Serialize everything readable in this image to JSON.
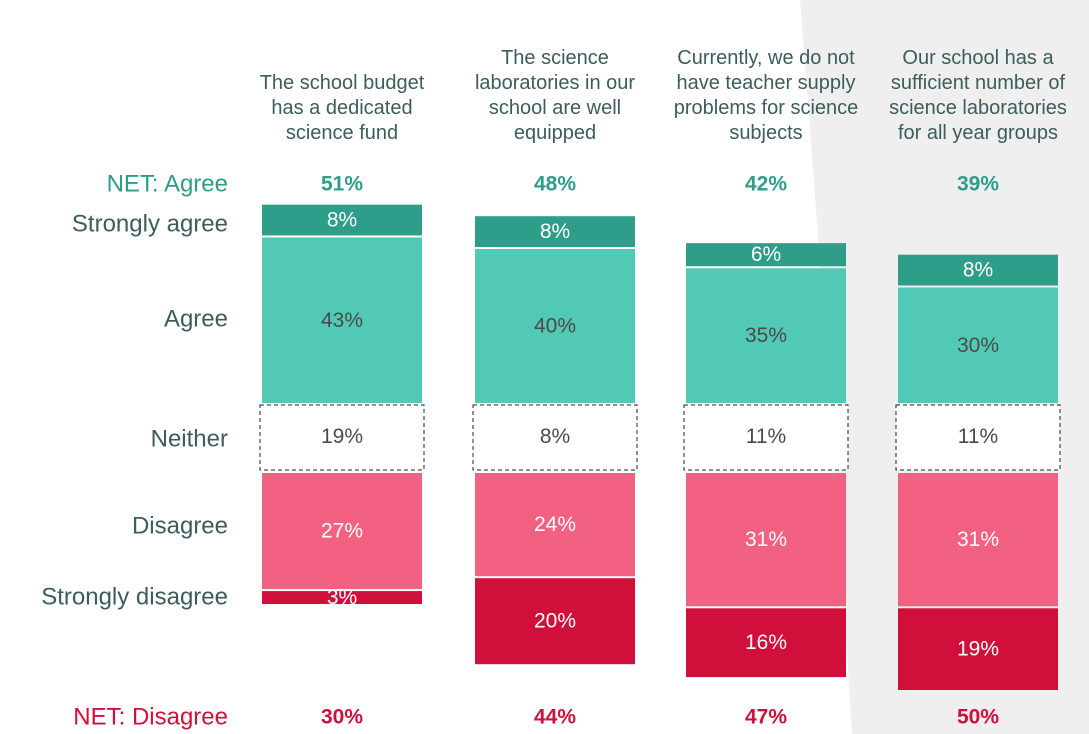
{
  "chart_data": {
    "type": "bar",
    "categories": [
      "The school budget has a dedicated science fund",
      "The science laboratories in our school are well equipped",
      "Currently, we do not have teacher supply problems for science subjects",
      "Our school has a sufficient number of science laboratories for all year groups"
    ],
    "series": [
      {
        "name": "Strongly agree",
        "color": "#2e9e8a",
        "values": [
          8,
          8,
          6,
          8
        ],
        "value_labels": [
          "8%",
          "8%",
          "6%",
          "8%"
        ]
      },
      {
        "name": "Agree",
        "color": "#52c9b4",
        "values": [
          43,
          40,
          35,
          30
        ],
        "value_labels": [
          "43%",
          "40%",
          "35%",
          "30%"
        ]
      },
      {
        "name": "Neither",
        "color": "#ffffff",
        "values": [
          19,
          8,
          11,
          11
        ],
        "value_labels": [
          "19%",
          "8%",
          "11%",
          "11%"
        ]
      },
      {
        "name": "Disagree",
        "color": "#f26182",
        "values": [
          27,
          24,
          31,
          31
        ],
        "value_labels": [
          "27%",
          "24%",
          "31%",
          "31%"
        ]
      },
      {
        "name": "Strongly disagree",
        "color": "#d0103a",
        "values": [
          3,
          20,
          16,
          19
        ],
        "value_labels": [
          "3%",
          "20%",
          "16%",
          "19%"
        ]
      }
    ],
    "net": [
      {
        "name": "NET: Agree",
        "color": "#2e9e8a",
        "values": [
          51,
          48,
          42,
          39
        ],
        "value_labels": [
          "51%",
          "48%",
          "42%",
          "39%"
        ]
      },
      {
        "name": "NET: Disagree",
        "color": "#d0103a",
        "values": [
          30,
          44,
          47,
          50
        ],
        "value_labels": [
          "30%",
          "44%",
          "47%",
          "50%"
        ]
      }
    ]
  }
}
